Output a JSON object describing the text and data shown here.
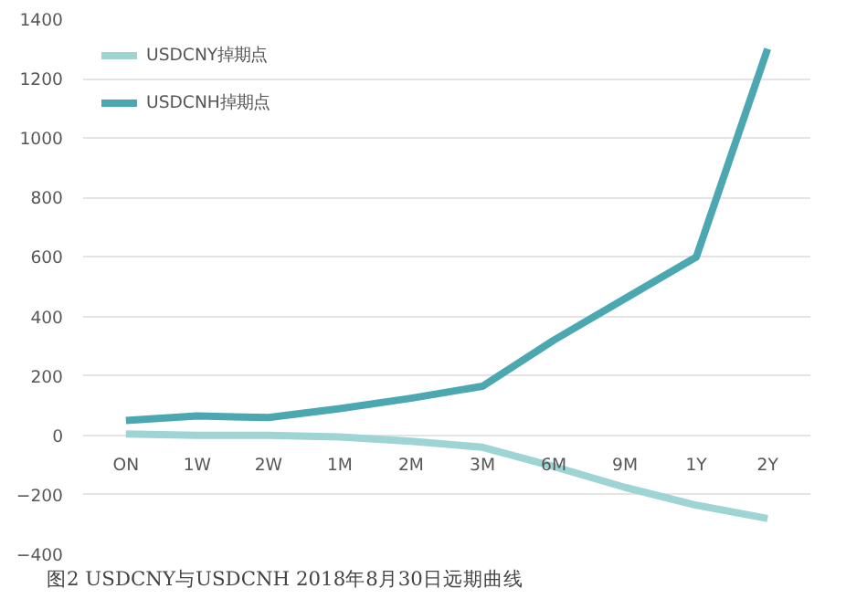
{
  "chart_data": {
    "type": "line",
    "title": "图2  USDCNY与USDCNH 2018年8月30日远期曲线",
    "categories": [
      "ON",
      "1W",
      "2W",
      "1M",
      "2M",
      "3M",
      "6M",
      "9M",
      "1Y",
      "2Y"
    ],
    "series": [
      {
        "name": "USDCNY掉期点",
        "color": "#9fd4d4",
        "values": [
          5,
          0,
          0,
          -5,
          -20,
          -40,
          -105,
          -175,
          -235,
          -280
        ]
      },
      {
        "name": "USDCNH掉期点",
        "color": "#4ba7b0",
        "values": [
          50,
          65,
          60,
          90,
          125,
          165,
          320,
          460,
          600,
          1300
        ]
      }
    ],
    "ylim": [
      -400,
      1400
    ],
    "yticks": [
      -400,
      -200,
      0,
      200,
      400,
      600,
      800,
      1000,
      1200,
      1400
    ],
    "grid": "y",
    "legend": "top left",
    "marker": "none",
    "line_style": "solid"
  }
}
